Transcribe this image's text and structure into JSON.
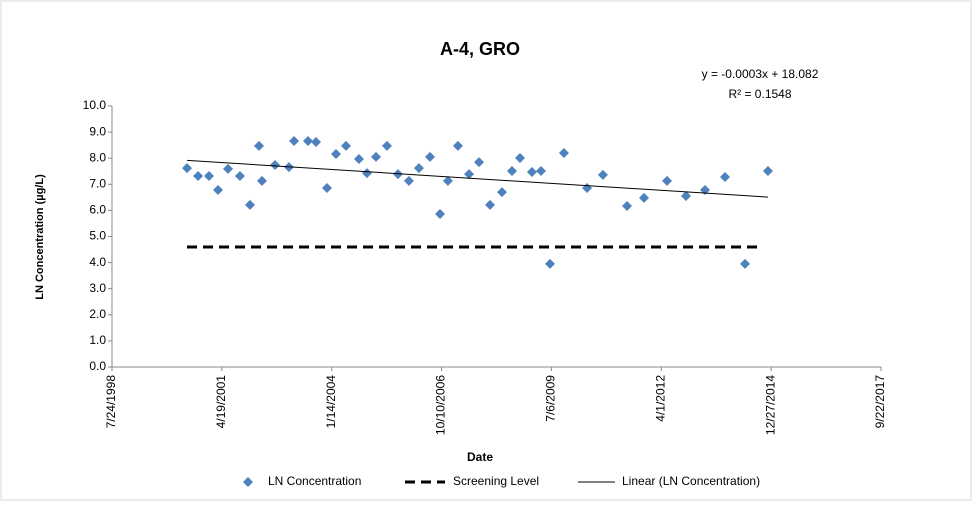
{
  "chart_data": {
    "type": "scatter",
    "title": "A-4, GRO",
    "x_label": "Date",
    "y_label": "LN Concentration (µg/L)",
    "xlim": [
      36000,
      43000
    ],
    "xticks": [
      {
        "value": 36000,
        "label": "7/24/1998"
      },
      {
        "value": 37000,
        "label": "4/19/2001"
      },
      {
        "value": 38000,
        "label": "1/14/2004"
      },
      {
        "value": 39000,
        "label": "10/10/2006"
      },
      {
        "value": 40000,
        "label": "7/6/2009"
      },
      {
        "value": 41000,
        "label": "4/1/2012"
      },
      {
        "value": 42000,
        "label": "12/27/2014"
      },
      {
        "value": 43000,
        "label": "9/22/2017"
      }
    ],
    "ylim": [
      0,
      10
    ],
    "yticks": [
      {
        "value": 0,
        "label": "0.0"
      },
      {
        "value": 1,
        "label": "1.0"
      },
      {
        "value": 2,
        "label": "2.0"
      },
      {
        "value": 3,
        "label": "3.0"
      },
      {
        "value": 4,
        "label": "4.0"
      },
      {
        "value": 5,
        "label": "5.0"
      },
      {
        "value": 6,
        "label": "6.0"
      },
      {
        "value": 7,
        "label": "7.0"
      },
      {
        "value": 8,
        "label": "8.0"
      },
      {
        "value": 9,
        "label": "9.0"
      },
      {
        "value": 10,
        "label": "10.0"
      }
    ],
    "grid": false,
    "series": [
      {
        "name": "LN Concentration",
        "color": "#4f81bd",
        "marker": "diamond",
        "x": [
          36683,
          36783,
          36883,
          36965,
          37056,
          37165,
          37256,
          37338,
          37365,
          37484,
          37611,
          37657,
          37784,
          37857,
          37957,
          38039,
          38130,
          38248,
          38321,
          38403,
          38503,
          38603,
          38703,
          38794,
          38895,
          38986,
          39058,
          39149,
          39250,
          39341,
          39441,
          39550,
          39641,
          39714,
          39823,
          39905,
          39987,
          40114,
          40324,
          40469,
          40688,
          40843,
          41052,
          41225,
          41398,
          41580,
          41762,
          41971
        ],
        "values": [
          7.62,
          7.32,
          7.32,
          6.78,
          7.59,
          7.32,
          6.21,
          8.47,
          7.13,
          7.74,
          7.66,
          8.66,
          8.66,
          8.62,
          6.86,
          8.16,
          8.47,
          7.97,
          7.43,
          8.05,
          8.47,
          7.39,
          7.13,
          7.62,
          8.05,
          5.86,
          7.13,
          8.47,
          7.39,
          7.85,
          6.21,
          6.7,
          7.51,
          8.01,
          7.47,
          7.51,
          3.95,
          8.2,
          6.86,
          7.36,
          6.17,
          6.48,
          7.13,
          6.55,
          6.78,
          7.28,
          3.95,
          7.51
        ]
      },
      {
        "name": "Screening Level",
        "color": "#000000",
        "dash": true,
        "x": [
          36683,
          41898
        ],
        "values": [
          4.6,
          4.6
        ]
      }
    ],
    "trendline": {
      "name": "Linear (LN Concentration)",
      "color": "#000000",
      "equation": "y = -0.0003x + 18.082",
      "r_squared": "R² = 0.1548"
    }
  }
}
